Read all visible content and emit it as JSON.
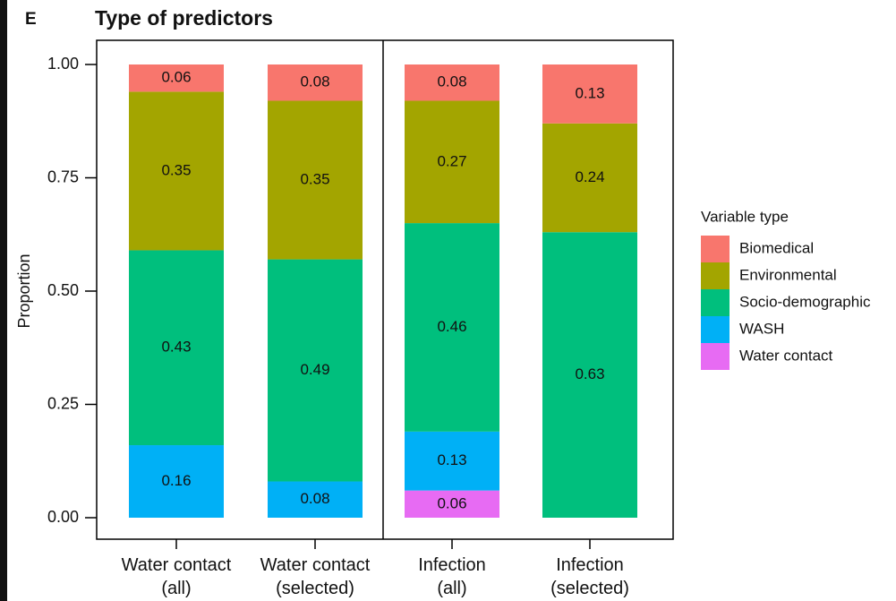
{
  "panel_label": "E",
  "chart_data": {
    "type": "stacked_bar",
    "title": "Type of predictors",
    "y_label": "Proportion",
    "categories": [
      "Water contact\n(all)",
      "Water contact\n(selected)",
      "Infection\n(all)",
      "Infection\n(selected)"
    ],
    "series": [
      {
        "name": "Biomedical",
        "color": "#F8766D",
        "values": [
          0.06,
          0.08,
          0.08,
          0.13
        ]
      },
      {
        "name": "Environmental",
        "color": "#A3A500",
        "values": [
          0.35,
          0.35,
          0.27,
          0.24
        ]
      },
      {
        "name": "Socio-demographic",
        "color": "#00BF7D",
        "values": [
          0.43,
          0.49,
          0.46,
          0.63
        ]
      },
      {
        "name": "WASH",
        "color": "#00B0F6",
        "values": [
          0.16,
          0.08,
          0.13,
          null
        ]
      },
      {
        "name": "Water contact",
        "color": "#E76BF3",
        "values": [
          null,
          null,
          0.06,
          null
        ]
      }
    ],
    "legend_title": "Variable type",
    "ylim": [
      0,
      1
    ],
    "yticks": [
      {
        "value": 0,
        "label": "0.00"
      },
      {
        "value": 0.25,
        "label": "0.25"
      },
      {
        "value": 0.5,
        "label": "0.50"
      },
      {
        "value": 0.75,
        "label": "0.75"
      },
      {
        "value": 1,
        "label": "1.00"
      }
    ]
  }
}
